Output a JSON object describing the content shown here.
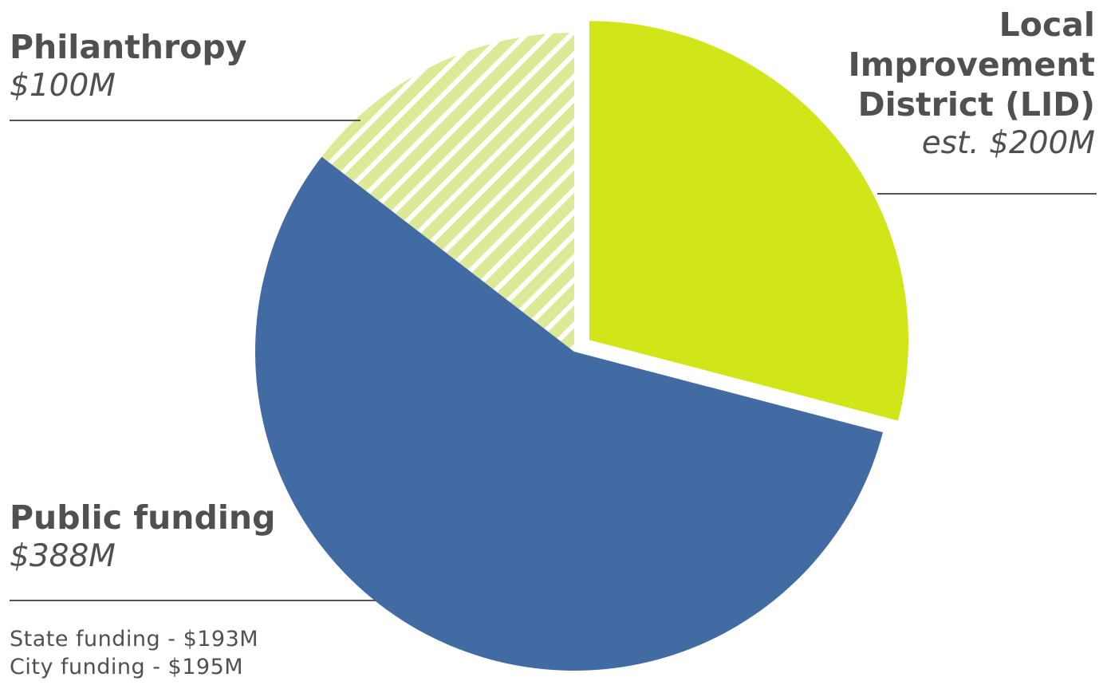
{
  "chart_data": {
    "type": "pie",
    "slices": [
      {
        "label": "Local Improvement District (LID)",
        "label_lines": [
          "Local",
          "Improvement",
          "District (LID)"
        ],
        "value_label": "est. $200M",
        "value": 200,
        "color": "#d1e619",
        "pattern": "solid",
        "exploded": true
      },
      {
        "label": "Public funding",
        "value_label": "$388M",
        "value": 388,
        "color": "#426ba3",
        "pattern": "solid",
        "exploded": false,
        "breakdown": [
          {
            "text": "State funding - $193M",
            "value": 193
          },
          {
            "text": "City funding - $195M",
            "value": 195
          }
        ]
      },
      {
        "label": "Philanthropy",
        "value_label": "$100M",
        "value": 100,
        "color": "#dcea98",
        "pattern": "hatched",
        "exploded": false
      }
    ]
  }
}
